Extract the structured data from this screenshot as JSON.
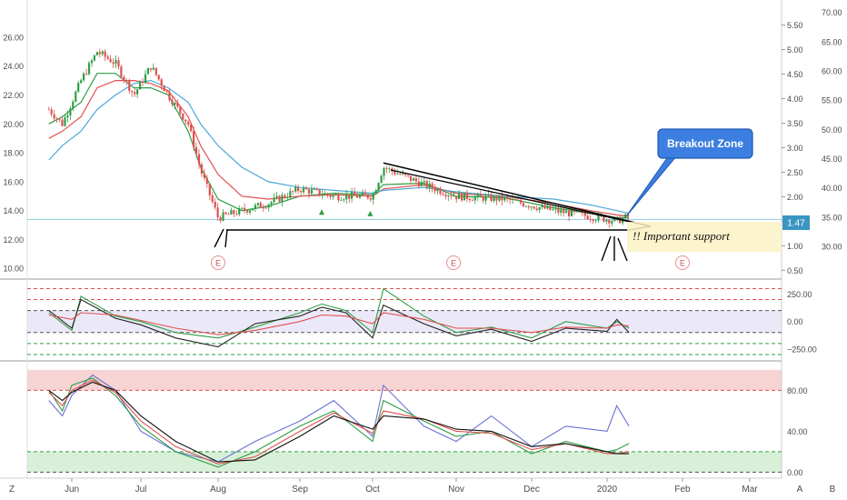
{
  "chart_data": [
    {
      "type": "candlestick",
      "title": "",
      "x_axis": {
        "tick_labels": [
          "Jun",
          "Jul",
          "Aug",
          "Sep",
          "Oct",
          "Nov",
          "Dec",
          "2020",
          "Feb",
          "Mar"
        ],
        "corner_left": "Z",
        "corner_right_a": "A",
        "corner_right_b": "B"
      },
      "left_axis": {
        "ticks": [
          {
            "v": 26,
            "label": "26.00"
          },
          {
            "v": 24,
            "label": "24.00"
          },
          {
            "v": 22,
            "label": "22.00"
          },
          {
            "v": 20,
            "label": "20.00"
          },
          {
            "v": 18,
            "label": "18.00"
          },
          {
            "v": 16,
            "label": "16.00"
          },
          {
            "v": 14,
            "label": "14.00"
          },
          {
            "v": 12,
            "label": "12.00"
          },
          {
            "v": 10,
            "label": "10.00"
          }
        ],
        "ylim": [
          9.7,
          28.2
        ]
      },
      "right_axis_1": {
        "ticks": [
          {
            "v": 5.5,
            "label": "5.50"
          },
          {
            "v": 5.0,
            "label": "5.00"
          },
          {
            "v": 4.5,
            "label": "4.50"
          },
          {
            "v": 4.0,
            "label": "4.00"
          },
          {
            "v": 3.5,
            "label": "3.50"
          },
          {
            "v": 3.0,
            "label": "3.00"
          },
          {
            "v": 2.5,
            "label": "2.50"
          },
          {
            "v": 2.0,
            "label": "2.00"
          },
          {
            "v": 1.5,
            "label": "1.50"
          },
          {
            "v": 1.0,
            "label": "1.00"
          },
          {
            "v": 0.5,
            "label": "0.50"
          }
        ],
        "ylim": [
          0.45,
          5.9
        ]
      },
      "right_axis_2": {
        "ticks": [
          {
            "v": 70,
            "label": "70.00"
          },
          {
            "v": 65,
            "label": "65.00"
          },
          {
            "v": 60,
            "label": "60.00"
          },
          {
            "v": 55,
            "label": "55.00"
          },
          {
            "v": 50,
            "label": "50.00"
          },
          {
            "v": 45,
            "label": "45.00"
          },
          {
            "v": 40,
            "label": "40.00"
          },
          {
            "v": 35,
            "label": "35.00"
          },
          {
            "v": 30,
            "label": "30.00"
          }
        ],
        "ylim": [
          25.5,
          71.2
        ]
      },
      "last_price_label": "1.47",
      "support_level": 13.2,
      "earnings_markers": {
        "label": "E",
        "dates": [
          "Aug 1",
          "Oct 31",
          "Feb 1"
        ]
      },
      "annotations": {
        "breakout_zone": "Breakout Zone",
        "important_support": "!! Important support"
      },
      "price_series": [
        {
          "date": "May 15",
          "value": 21.0
        },
        {
          "date": "May 25",
          "value": 20.0
        },
        {
          "date": "Jun 5",
          "value": 23.0
        },
        {
          "date": "Jun 12",
          "value": 25.0
        },
        {
          "date": "Jun 20",
          "value": 24.2
        },
        {
          "date": "Jun 28",
          "value": 22.0
        },
        {
          "date": "Jul 5",
          "value": 24.0
        },
        {
          "date": "Jul 12",
          "value": 22.0
        },
        {
          "date": "Jul 20",
          "value": 20.0
        },
        {
          "date": "Jul 25",
          "value": 16.8
        },
        {
          "date": "Aug 1",
          "value": 13.5
        },
        {
          "date": "Aug 10",
          "value": 14.0
        },
        {
          "date": "Aug 20",
          "value": 14.5
        },
        {
          "date": "Sep 1",
          "value": 15.5
        },
        {
          "date": "Sep 15",
          "value": 15.0
        },
        {
          "date": "Oct 1",
          "value": 15.0
        },
        {
          "date": "Oct 5",
          "value": 17.0
        },
        {
          "date": "Oct 20",
          "value": 15.8
        },
        {
          "date": "Nov 1",
          "value": 15.0
        },
        {
          "date": "Nov 20",
          "value": 14.8
        },
        {
          "date": "Dec 10",
          "value": 14.0
        },
        {
          "date": "Dec 25",
          "value": 13.6
        },
        {
          "date": "Jan 5",
          "value": 13.3
        },
        {
          "date": "Jan 10",
          "value": 13.6
        }
      ],
      "moving_averages": [
        {
          "color": "#2e9e45",
          "values": [
            20.0,
            20.5,
            21.5,
            23.5,
            23.5,
            22.5,
            22.5,
            22.0,
            19.5,
            17.0,
            14.8,
            14.0,
            14.3,
            15.0,
            15.2,
            15.1,
            15.8,
            15.9,
            15.0,
            14.9,
            14.2,
            13.8,
            13.5,
            13.5
          ]
        },
        {
          "color": "#e05050",
          "values": [
            19.0,
            19.5,
            20.5,
            22.5,
            23.0,
            23.0,
            22.8,
            22.3,
            20.5,
            18.5,
            16.5,
            15.0,
            14.8,
            15.0,
            15.1,
            15.0,
            15.5,
            15.8,
            15.2,
            15.0,
            14.5,
            14.0,
            13.7,
            13.6
          ]
        },
        {
          "color": "#4aa8d8",
          "values": [
            17.5,
            18.5,
            19.5,
            21.0,
            22.0,
            22.8,
            23.0,
            22.5,
            21.5,
            20.0,
            18.5,
            17.0,
            16.0,
            15.6,
            15.4,
            15.2,
            15.4,
            15.6,
            15.3,
            15.0,
            14.8,
            14.4,
            14.0,
            13.8
          ]
        }
      ]
    },
    {
      "type": "line",
      "title": "",
      "right_axis": {
        "ticks": [
          {
            "v": 250,
            "label": "250.00"
          },
          {
            "v": 0,
            "label": "0.00"
          },
          {
            "v": -250,
            "label": "−250.00"
          }
        ],
        "ylim": [
          -350,
          370
        ]
      },
      "band": [
        -100,
        100
      ],
      "levels": [
        {
          "v": 300,
          "color": "#e05050"
        },
        {
          "v": 200,
          "color": "#e05050"
        },
        {
          "v": 100,
          "color": "#555555"
        },
        {
          "v": -100,
          "color": "#555555"
        },
        {
          "v": -200,
          "color": "#2e9e45"
        },
        {
          "v": -300,
          "color": "#2e9e45"
        }
      ],
      "series": [
        {
          "color": "#2e9e45",
          "dates": [
            "May 15",
            "Jun 1",
            "Jun 5",
            "Jun 20",
            "Jul 1",
            "Jul 15",
            "Aug 1",
            "Aug 15",
            "Sep 1",
            "Sep 10",
            "Sep 20",
            "Oct 1",
            "Oct 5",
            "Oct 20",
            "Nov 1",
            "Nov 15",
            "Dec 1",
            "Dec 15",
            "Jan 1",
            "Jan 5",
            "Jan 10"
          ],
          "values": [
            80,
            -80,
            230,
            50,
            0,
            -100,
            -150,
            -50,
            80,
            160,
            100,
            -100,
            300,
            50,
            -100,
            -50,
            -150,
            0,
            -60,
            0,
            -60
          ]
        },
        {
          "color": "#222222",
          "dates": [
            "May 15",
            "Jun 1",
            "Jun 5",
            "Jun 20",
            "Jul 1",
            "Jul 15",
            "Aug 1",
            "Aug 15",
            "Sep 1",
            "Sep 10",
            "Sep 20",
            "Oct 1",
            "Oct 5",
            "Oct 20",
            "Nov 1",
            "Nov 15",
            "Dec 1",
            "Dec 15",
            "Jan 1",
            "Jan 5",
            "Jan 10"
          ],
          "values": [
            100,
            -60,
            200,
            30,
            -30,
            -150,
            -230,
            -20,
            50,
            130,
            80,
            -150,
            150,
            -20,
            -130,
            -70,
            -180,
            -60,
            -90,
            20,
            -100
          ]
        },
        {
          "color": "#e05050",
          "dates": [
            "May 15",
            "Jun 1",
            "Jun 5",
            "Jun 20",
            "Jul 1",
            "Jul 15",
            "Aug 1",
            "Aug 15",
            "Sep 1",
            "Sep 10",
            "Sep 20",
            "Oct 1",
            "Oct 5",
            "Oct 20",
            "Nov 1",
            "Nov 15",
            "Dec 1",
            "Dec 15",
            "Jan 1",
            "Jan 5",
            "Jan 10"
          ],
          "values": [
            60,
            20,
            80,
            60,
            10,
            -60,
            -120,
            -80,
            0,
            60,
            50,
            -20,
            80,
            20,
            -60,
            -60,
            -100,
            -50,
            -60,
            -30,
            -40
          ]
        }
      ]
    },
    {
      "type": "line",
      "title": "",
      "right_axis": {
        "ticks": [
          {
            "v": 80,
            "label": "80.00"
          },
          {
            "v": 40,
            "label": "40.00"
          },
          {
            "v": 0,
            "label": "0.00"
          }
        ],
        "ylim": [
          -5,
          107
        ]
      },
      "bands": [
        {
          "from": 80,
          "to": 100,
          "color": "#f7d4d4"
        },
        {
          "from": 0,
          "to": 20,
          "color": "#d8f0d8"
        }
      ],
      "levels": [
        {
          "v": 80,
          "color": "#e05050"
        },
        {
          "v": 20,
          "color": "#2e9e45"
        },
        {
          "v": 0,
          "color": "#555555"
        }
      ],
      "series": [
        {
          "color": "#6b6fd4",
          "dates": [
            "May 15",
            "May 25",
            "Jun 1",
            "Jun 10",
            "Jun 20",
            "Jul 1",
            "Jul 15",
            "Aug 1",
            "Aug 15",
            "Sep 1",
            "Sep 15",
            "Oct 1",
            "Oct 5",
            "Oct 20",
            "Nov 1",
            "Nov 15",
            "Dec 1",
            "Dec 15",
            "Jan 1",
            "Jan 5",
            "Jan 10"
          ],
          "values": [
            70,
            55,
            75,
            95,
            80,
            40,
            20,
            10,
            30,
            50,
            70,
            35,
            85,
            45,
            30,
            55,
            25,
            45,
            40,
            65,
            45
          ]
        },
        {
          "color": "#2e9e45",
          "dates": [
            "May 15",
            "May 25",
            "Jun 1",
            "Jun 10",
            "Jun 20",
            "Jul 1",
            "Jul 15",
            "Aug 1",
            "Aug 15",
            "Sep 1",
            "Sep 15",
            "Oct 1",
            "Oct 5",
            "Oct 20",
            "Nov 1",
            "Nov 15",
            "Dec 1",
            "Dec 15",
            "Jan 1",
            "Jan 5",
            "Jan 10"
          ],
          "values": [
            80,
            60,
            85,
            92,
            75,
            45,
            20,
            5,
            20,
            45,
            60,
            30,
            70,
            50,
            35,
            40,
            18,
            30,
            20,
            22,
            28
          ]
        },
        {
          "color": "#e05050",
          "dates": [
            "May 15",
            "May 25",
            "Jun 1",
            "Jun 10",
            "Jun 20",
            "Jul 1",
            "Jul 15",
            "Aug 1",
            "Aug 15",
            "Sep 1",
            "Sep 15",
            "Oct 1",
            "Oct 5",
            "Oct 20",
            "Nov 1",
            "Nov 15",
            "Dec 1",
            "Dec 15",
            "Jan 1",
            "Jan 5",
            "Jan 10"
          ],
          "values": [
            78,
            65,
            80,
            90,
            78,
            50,
            25,
            8,
            15,
            40,
            58,
            38,
            60,
            52,
            40,
            38,
            22,
            28,
            18,
            18,
            20
          ]
        },
        {
          "color": "#111111",
          "dates": [
            "May 15",
            "May 25",
            "Jun 1",
            "Jun 10",
            "Jun 20",
            "Jul 1",
            "Jul 15",
            "Aug 1",
            "Aug 15",
            "Sep 1",
            "Sep 15",
            "Oct 1",
            "Oct 5",
            "Oct 20",
            "Nov 1",
            "Nov 15",
            "Dec 1",
            "Dec 15",
            "Jan 1",
            "Jan 5",
            "Jan 10"
          ],
          "values": [
            80,
            70,
            78,
            88,
            80,
            55,
            30,
            10,
            12,
            35,
            55,
            42,
            55,
            52,
            42,
            40,
            25,
            28,
            20,
            18,
            18
          ]
        }
      ]
    }
  ]
}
